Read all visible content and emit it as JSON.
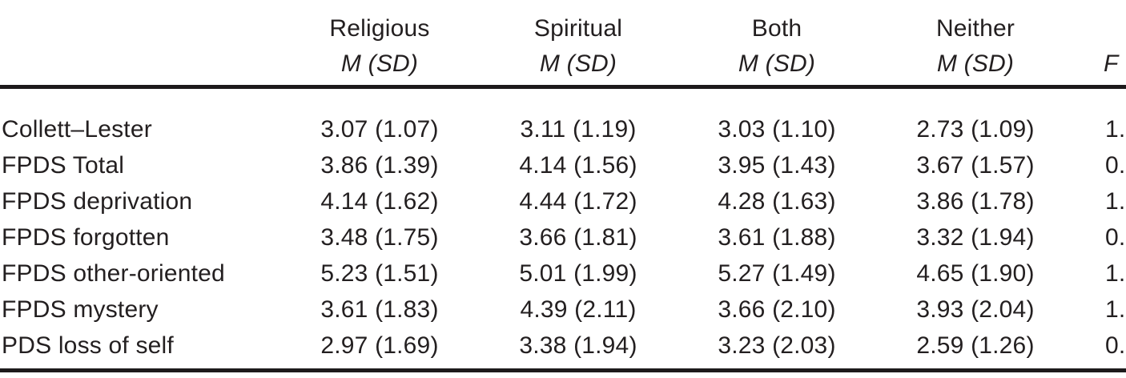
{
  "page": {
    "background": "#ffffff",
    "text_color": "#231f20",
    "rule_color": "#1d1a1b"
  },
  "table": {
    "header": {
      "stub": "",
      "groups": [
        {
          "label": "Religious",
          "stat": "M (SD)"
        },
        {
          "label": "Spiritual",
          "stat": "M (SD)"
        },
        {
          "label": "Both",
          "stat": "M (SD)"
        },
        {
          "label": "Neither",
          "stat": "M (SD)"
        }
      ],
      "f_label": "F"
    },
    "rows": [
      {
        "label": "Collett–Lester",
        "religious": "3.07 (1.07)",
        "spiritual": "3.11 (1.19)",
        "both": "3.03 (1.10)",
        "neither": "2.73 (1.09)",
        "f": "1."
      },
      {
        "label": "FPDS Total",
        "religious": "3.86 (1.39)",
        "spiritual": "4.14 (1.56)",
        "both": "3.95 (1.43)",
        "neither": "3.67 (1.57)",
        "f": "0."
      },
      {
        "label": "FPDS deprivation",
        "religious": "4.14 (1.62)",
        "spiritual": "4.44 (1.72)",
        "both": "4.28 (1.63)",
        "neither": "3.86 (1.78)",
        "f": "1."
      },
      {
        "label": "FPDS forgotten",
        "religious": "3.48 (1.75)",
        "spiritual": "3.66 (1.81)",
        "both": "3.61 (1.88)",
        "neither": "3.32 (1.94)",
        "f": "0."
      },
      {
        "label": "FPDS other-oriented",
        "religious": "5.23 (1.51)",
        "spiritual": "5.01 (1.99)",
        "both": "5.27 (1.49)",
        "neither": "4.65 (1.90)",
        "f": "1."
      },
      {
        "label": "FPDS mystery",
        "religious": "3.61 (1.83)",
        "spiritual": "4.39 (2.11)",
        "both": "3.66 (2.10)",
        "neither": "3.93 (2.04)",
        "f": "1."
      },
      {
        "label": "PDS loss of self",
        "religious": "2.97 (1.69)",
        "spiritual": "3.38 (1.94)",
        "both": "3.23 (2.03)",
        "neither": "2.59 (1.26)",
        "f": "0."
      }
    ]
  }
}
